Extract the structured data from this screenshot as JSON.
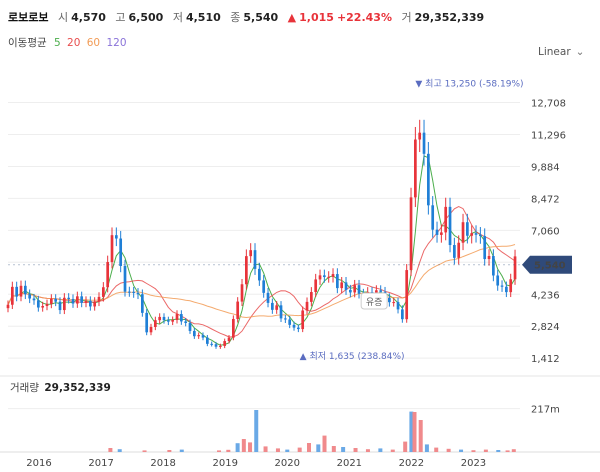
{
  "header": {
    "name": "로보로보",
    "open_label": "시",
    "open": "4,570",
    "high_label": "고",
    "high": "6,500",
    "low_label": "저",
    "low": "4,510",
    "close_label": "종",
    "close": "5,540",
    "change_arrow": "▲",
    "change": "1,015",
    "change_pct": "+22.43%",
    "volume_label": "거",
    "volume": "29,352,339"
  },
  "ma": {
    "label": "이동평균",
    "p5": "5",
    "p20": "20",
    "p60": "60",
    "p120": "120"
  },
  "scale_label": "Linear",
  "colors": {
    "up": "#e8333a",
    "down": "#1f7fd6",
    "ma5": "#4cae4c",
    "ma20": "#e84e4e",
    "ma60": "#f29b55",
    "ma120": "#8a73d9",
    "badge": "#2f4a7a"
  },
  "chart_data": {
    "type": "candlestick",
    "price_axis": {
      "ticks": [
        12708,
        11296,
        9884,
        8472,
        7060,
        5648,
        4236,
        2824,
        1412
      ],
      "tick_labels": [
        "12,708",
        "11,296",
        "9,884",
        "8,472",
        "7,060",
        "",
        "4,236",
        "2,824",
        "1,412"
      ],
      "range": [
        800,
        14500
      ]
    },
    "x_axis": {
      "range": [
        2015.5,
        2023.75
      ],
      "ticks": [
        2016,
        2017,
        2018,
        2019,
        2020,
        2021,
        2022,
        2023
      ],
      "tick_labels": [
        "2016",
        "2017",
        "2018",
        "2019",
        "2020",
        "2021",
        "2022",
        "2023"
      ]
    },
    "current_price": "5,540",
    "annotations": {
      "high_text": "▼ 최고 13,250 (-58.19%)",
      "high": 13250,
      "high_at": 2022.0,
      "low_text": "▲ 최저 1,635 (238.84%)",
      "low": 1635,
      "low_at": 2020.2,
      "event_text": "유증",
      "event_at": 2021.4
    },
    "candles_close": [
      [
        2015.5,
        4100
      ],
      [
        2015.7,
        4600
      ],
      [
        2015.9,
        3900
      ],
      [
        2016.1,
        3800
      ],
      [
        2016.3,
        3700
      ],
      [
        2016.5,
        3850
      ],
      [
        2016.7,
        3900
      ],
      [
        2016.9,
        3750
      ],
      [
        2017.05,
        4500
      ],
      [
        2017.2,
        7800
      ],
      [
        2017.35,
        4800
      ],
      [
        2017.5,
        4500
      ],
      [
        2017.6,
        3900
      ],
      [
        2017.75,
        2500
      ],
      [
        2017.9,
        3400
      ],
      [
        2018.05,
        2700
      ],
      [
        2018.2,
        3300
      ],
      [
        2018.35,
        2800
      ],
      [
        2018.5,
        2500
      ],
      [
        2018.65,
        2200
      ],
      [
        2018.8,
        2000
      ],
      [
        2018.95,
        2100
      ],
      [
        2019.1,
        2600
      ],
      [
        2019.25,
        4500
      ],
      [
        2019.4,
        6300
      ],
      [
        2019.55,
        5000
      ],
      [
        2019.7,
        4000
      ],
      [
        2019.85,
        3500
      ],
      [
        2020.0,
        3300
      ],
      [
        2020.15,
        2500
      ],
      [
        2020.25,
        3600
      ],
      [
        2020.4,
        4500
      ],
      [
        2020.55,
        5500
      ],
      [
        2020.7,
        5200
      ],
      [
        2020.85,
        4600
      ],
      [
        2021.0,
        4700
      ],
      [
        2021.15,
        4300
      ],
      [
        2021.3,
        4500
      ],
      [
        2021.45,
        4500
      ],
      [
        2021.6,
        4100
      ],
      [
        2021.75,
        3500
      ],
      [
        2021.85,
        3200
      ],
      [
        2021.95,
        6000
      ],
      [
        2022.02,
        9500
      ],
      [
        2022.1,
        11500
      ],
      [
        2022.25,
        9000
      ],
      [
        2022.4,
        6800
      ],
      [
        2022.55,
        7600
      ],
      [
        2022.7,
        6100
      ],
      [
        2022.85,
        7100
      ],
      [
        2023.0,
        6800
      ],
      [
        2023.15,
        6200
      ],
      [
        2023.3,
        5600
      ],
      [
        2023.45,
        4600
      ],
      [
        2023.55,
        4300
      ],
      [
        2023.65,
        5540
      ]
    ],
    "volume_axis": {
      "ticks": [
        217
      ],
      "tick_labels": [
        "217m"
      ],
      "range": [
        0,
        300
      ]
    },
    "volume": {
      "label": "거래량",
      "value": "29,352,339",
      "spikes_m": [
        [
          2017.15,
          20
        ],
        [
          2017.3,
          14
        ],
        [
          2017.7,
          8
        ],
        [
          2018.1,
          10
        ],
        [
          2018.3,
          12
        ],
        [
          2018.9,
          8
        ],
        [
          2019.05,
          11
        ],
        [
          2019.2,
          44
        ],
        [
          2019.3,
          65
        ],
        [
          2019.4,
          48
        ],
        [
          2019.5,
          210
        ],
        [
          2019.65,
          28
        ],
        [
          2019.85,
          18
        ],
        [
          2020.0,
          12
        ],
        [
          2020.2,
          22
        ],
        [
          2020.35,
          45
        ],
        [
          2020.5,
          38
        ],
        [
          2020.6,
          82
        ],
        [
          2020.75,
          30
        ],
        [
          2020.9,
          25
        ],
        [
          2021.1,
          20
        ],
        [
          2021.3,
          14
        ],
        [
          2021.5,
          18
        ],
        [
          2021.7,
          12
        ],
        [
          2021.9,
          52
        ],
        [
          2022.0,
          202
        ],
        [
          2022.05,
          200
        ],
        [
          2022.15,
          160
        ],
        [
          2022.25,
          38
        ],
        [
          2022.4,
          22
        ],
        [
          2022.6,
          16
        ],
        [
          2022.8,
          12
        ],
        [
          2023.0,
          9
        ],
        [
          2023.2,
          12
        ],
        [
          2023.4,
          10
        ],
        [
          2023.55,
          8
        ],
        [
          2023.65,
          14
        ]
      ]
    }
  }
}
